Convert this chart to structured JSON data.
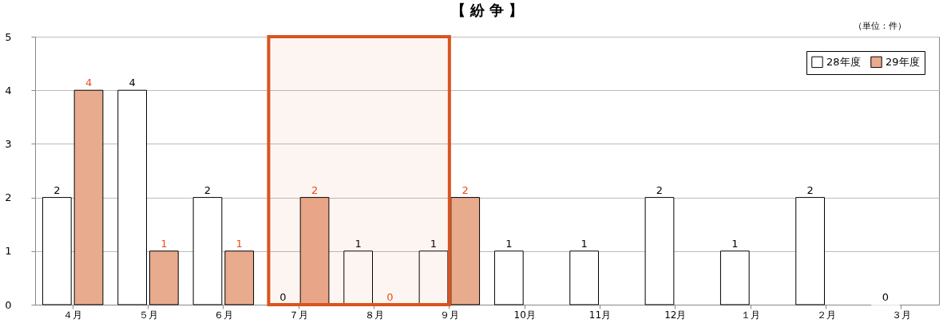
{
  "chart_data": {
    "type": "bar",
    "title": "【 紛 争 】",
    "annotations": [
      "（単位：件）"
    ],
    "categories": [
      "４月",
      "５月",
      "６月",
      "７月",
      "８月",
      "９月",
      "10月",
      "11月",
      "12月",
      "１月",
      "２月",
      "３月"
    ],
    "series": [
      {
        "name": "28年度",
        "color": "#ffffff",
        "values": [
          2,
          4,
          2,
          0,
          1,
          1,
          1,
          1,
          2,
          1,
          2,
          0
        ]
      },
      {
        "name": "29年度",
        "color": "#e9ab8e",
        "values": [
          4,
          1,
          1,
          2,
          0,
          2,
          null,
          null,
          null,
          null,
          null,
          null
        ]
      }
    ],
    "ylim": [
      0,
      5
    ],
    "yticks": [
      0,
      1,
      2,
      3,
      4,
      5
    ],
    "grid": "y",
    "legend": "top right",
    "data_labels": true,
    "bands": [
      {
        "axis": "x",
        "from": "７月",
        "to": "９月",
        "color": "#d9541e"
      }
    ]
  }
}
